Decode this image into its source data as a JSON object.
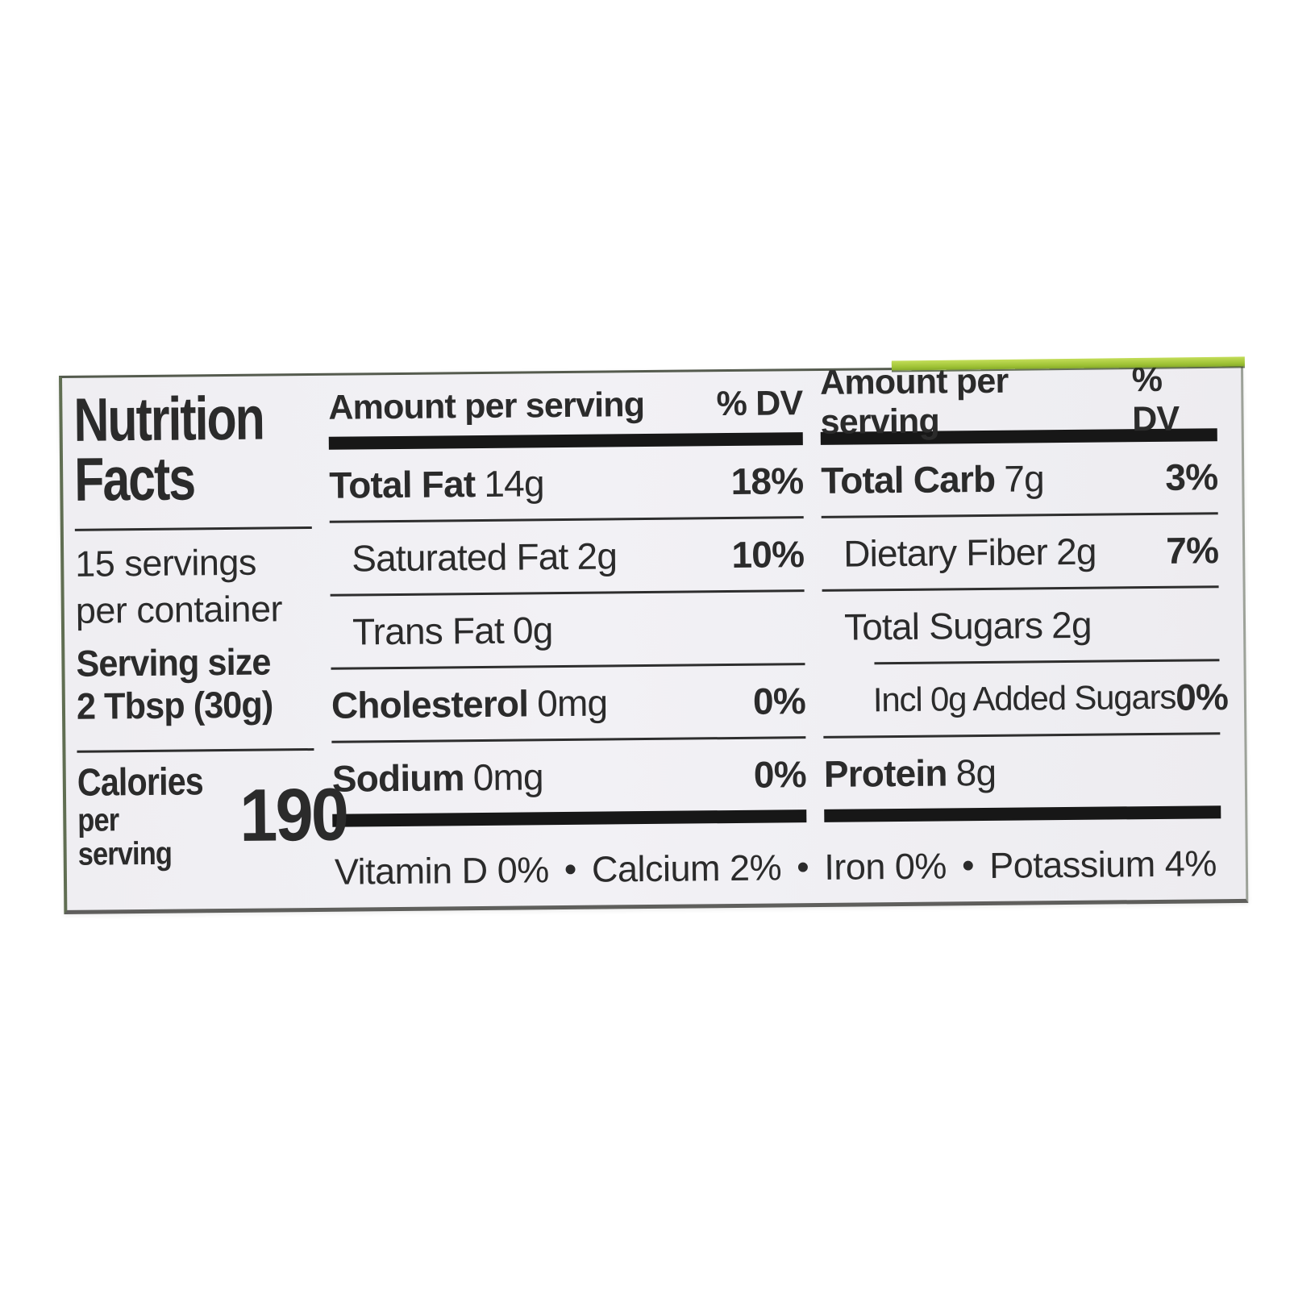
{
  "colors": {
    "label_background": "#f1f0f4",
    "text": "#2b2b2b",
    "divider": "#2e2e2e",
    "thick_bar": "#171717",
    "edge_green": "#9cc033"
  },
  "nutrition_label": {
    "title": [
      "Nutrition",
      "Facts"
    ],
    "servings_per_container": [
      "15 servings",
      "per container"
    ],
    "serving_size": {
      "label": "Serving size",
      "value": "2 Tbsp (30g)"
    },
    "calories": {
      "label": "Calories",
      "sublabel": "per serving",
      "value": "190"
    },
    "fat_panel": {
      "header": {
        "amount": "Amount per serving",
        "dv": "% DV"
      },
      "rows": [
        {
          "name": "Total Fat",
          "amount": "14g",
          "dv": "18%"
        },
        {
          "name": "Saturated Fat",
          "amount": "2g",
          "dv": "10%"
        },
        {
          "name": "Trans Fat",
          "amount": "0g",
          "dv": ""
        },
        {
          "name": "Cholesterol",
          "amount": "0mg",
          "dv": "0%"
        },
        {
          "name": "Sodium",
          "amount": "0mg",
          "dv": "0%"
        }
      ]
    },
    "carb_panel": {
      "header": {
        "amount": "Amount per serving",
        "dv": "% DV"
      },
      "rows": [
        {
          "name": "Total Carb",
          "amount": "7g",
          "dv": "3%"
        },
        {
          "name": "Dietary Fiber",
          "amount": "2g",
          "dv": "7%"
        },
        {
          "name": "Total Sugars",
          "amount": "2g",
          "dv": ""
        },
        {
          "name": "Incl 0g Added Sugars",
          "amount": "",
          "dv": "0%"
        },
        {
          "name": "Protein",
          "amount": "8g",
          "dv": ""
        }
      ]
    },
    "micronutrients": [
      {
        "name": "Vitamin D",
        "value": "0%"
      },
      {
        "name": "Calcium",
        "value": "2%"
      },
      {
        "name": "Iron",
        "value": "0%"
      },
      {
        "name": "Potassium",
        "value": "4%"
      }
    ]
  }
}
